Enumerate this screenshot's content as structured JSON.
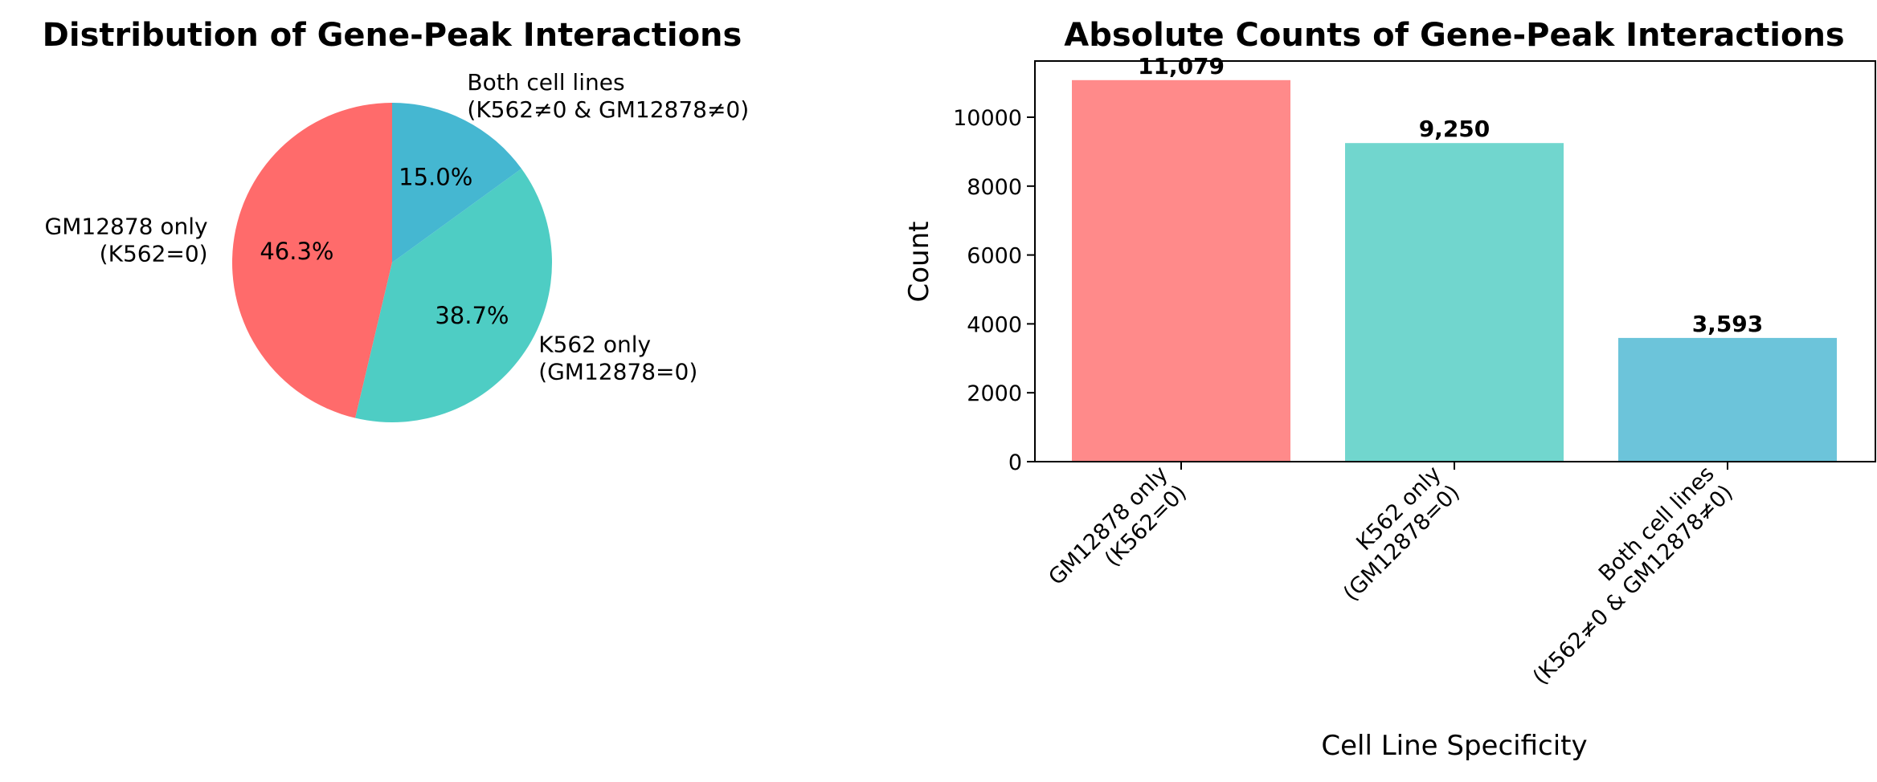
{
  "chart_data": [
    {
      "type": "pie",
      "title": "Distribution of Gene-Peak Interactions",
      "categories": [
        "GM12878 only\n(K562=0)",
        "K562 only\n(GM12878=0)",
        "Both cell lines\n(K562≠0 & GM12878≠0)"
      ],
      "values": [
        46.3,
        38.7,
        15.0
      ],
      "value_labels": [
        "46.3%",
        "38.7%",
        "15.0%"
      ],
      "colors": [
        "#ff6b6b",
        "#4ecdc4",
        "#45b7d1"
      ],
      "start_angle_deg": 90,
      "direction": "counterclockwise"
    },
    {
      "type": "bar",
      "title": "Absolute Counts of Gene-Peak Interactions",
      "categories": [
        "GM12878 only\n(K562=0)",
        "K562 only\n(GM12878=0)",
        "Both cell lines\n(K562≠0 & GM12878≠0)"
      ],
      "values": [
        11079,
        9250,
        3593
      ],
      "value_labels": [
        "11,079",
        "9,250",
        "3,593"
      ],
      "colors": [
        "#ff8a8a",
        "#71d6ce",
        "#6cc4da"
      ],
      "xlabel": "Cell Line Specificity",
      "ylabel": "Count",
      "ylim": [
        0,
        11633
      ],
      "yticks": [
        0,
        2000,
        4000,
        6000,
        8000,
        10000
      ],
      "grid": false
    }
  ]
}
